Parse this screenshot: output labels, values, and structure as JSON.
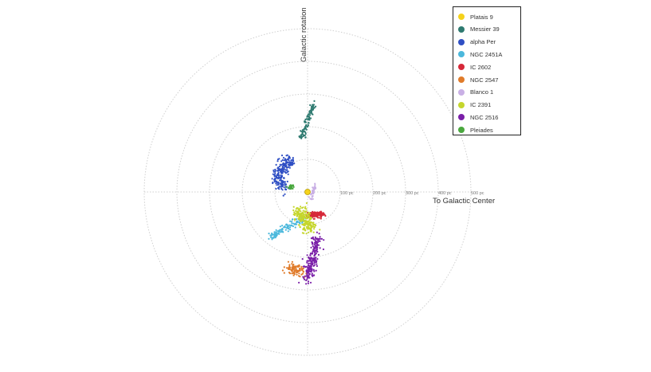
{
  "chart_data": {
    "type": "scatter",
    "polar": true,
    "xlabel": "To Galactic Center",
    "ylabel": "Galactic rotation",
    "rings": [
      "100 pc",
      "200 pc",
      "300 pc",
      "400 pc",
      "500 pc"
    ],
    "ring_max_pc": 500,
    "grid": true,
    "legend_position": "top-right",
    "center_marker": {
      "name": "Platais 9",
      "x": 0,
      "y": 0,
      "color": "#f5d21b"
    },
    "series": [
      {
        "name": "Platais 9",
        "color": "#f5d21b",
        "centroid": [
          0,
          0
        ],
        "n": 1
      },
      {
        "name": "Messier 39",
        "color": "#2e7a70",
        "trail": [
          [
            -20,
            160
          ],
          [
            -8,
            195
          ],
          [
            4,
            228
          ],
          [
            13,
            255
          ],
          [
            18,
            272
          ]
        ],
        "spread": 5,
        "n": 95
      },
      {
        "name": "alpha Per",
        "color": "#2f4fc4",
        "trail": [
          [
            -72,
            10
          ],
          [
            -86,
            32
          ],
          [
            -92,
            52
          ],
          [
            -80,
            68
          ],
          [
            -60,
            88
          ],
          [
            -50,
            100
          ]
        ],
        "spread": 10,
        "n": 230
      },
      {
        "name": "NGC 2451A",
        "color": "#4bb8dc",
        "trail": [
          [
            -112,
            -138
          ],
          [
            -80,
            -118
          ],
          [
            -48,
            -100
          ],
          [
            -22,
            -88
          ],
          [
            -5,
            -80
          ]
        ],
        "spread": 6,
        "n": 110
      },
      {
        "name": "IC 2602",
        "color": "#d62839",
        "trail": [
          [
            0,
            -72
          ],
          [
            12,
            -70
          ],
          [
            25,
            -71
          ],
          [
            36,
            -70
          ],
          [
            46,
            -66
          ]
        ],
        "spread": 5,
        "n": 130
      },
      {
        "name": "NGC 2547",
        "color": "#e07b2a",
        "trail": [
          [
            -60,
            -232
          ],
          [
            -45,
            -236
          ],
          [
            -30,
            -240
          ],
          [
            -18,
            -246
          ]
        ],
        "spread": 8,
        "n": 95
      },
      {
        "name": "Blanco 1",
        "color": "#c9b0e5",
        "trail": [
          [
            25,
            20
          ],
          [
            20,
            8
          ],
          [
            14,
            -4
          ],
          [
            11,
            -22
          ]
        ],
        "spread": 3,
        "n": 45
      },
      {
        "name": "IC 2391",
        "color": "#c5d62d",
        "trail": [
          [
            -25,
            -58
          ],
          [
            -15,
            -72
          ],
          [
            -6,
            -88
          ],
          [
            5,
            -105
          ],
          [
            12,
            -115
          ]
        ],
        "spread": 11,
        "n": 220
      },
      {
        "name": "NGC 2516",
        "color": "#7a1fa8",
        "trail": [
          [
            30,
            -135
          ],
          [
            24,
            -175
          ],
          [
            14,
            -215
          ],
          [
            4,
            -250
          ],
          [
            -5,
            -268
          ]
        ],
        "spread": 8,
        "n": 220
      },
      {
        "name": "Pleiades",
        "color": "#4aa83e",
        "trail": [
          [
            -58,
            12
          ],
          [
            -54,
            16
          ],
          [
            -50,
            14
          ],
          [
            -46,
            16
          ]
        ],
        "spread": 4,
        "n": 28
      }
    ]
  }
}
